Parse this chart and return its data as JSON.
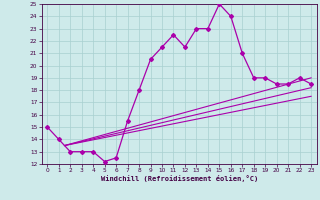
{
  "xlabel": "Windchill (Refroidissement éolien,°C)",
  "xlim": [
    -0.5,
    23.5
  ],
  "ylim": [
    12,
    25
  ],
  "xticks": [
    0,
    1,
    2,
    3,
    4,
    5,
    6,
    7,
    8,
    9,
    10,
    11,
    12,
    13,
    14,
    15,
    16,
    17,
    18,
    19,
    20,
    21,
    22,
    23
  ],
  "yticks": [
    12,
    13,
    14,
    15,
    16,
    17,
    18,
    19,
    20,
    21,
    22,
    23,
    24,
    25
  ],
  "bg_color": "#ceeaea",
  "grid_color": "#a8d0d0",
  "line_color": "#aa00aa",
  "line1_x": [
    0,
    1,
    2,
    3,
    4,
    5,
    6,
    7,
    8,
    9,
    10,
    11,
    12,
    13,
    14,
    15,
    16,
    17,
    18,
    19,
    20,
    21,
    22,
    23
  ],
  "line1_y": [
    15.0,
    14.0,
    13.0,
    13.0,
    13.0,
    12.2,
    12.5,
    15.5,
    18.0,
    20.5,
    21.5,
    22.5,
    21.5,
    23.0,
    23.0,
    25.0,
    24.0,
    21.0,
    19.0,
    19.0,
    18.5,
    18.5,
    19.0,
    18.5
  ],
  "line2_x": [
    1.5,
    23
  ],
  "line2_y": [
    13.5,
    17.5
  ],
  "line3_x": [
    1.5,
    23
  ],
  "line3_y": [
    13.5,
    18.2
  ],
  "line4_x": [
    1.5,
    23
  ],
  "line4_y": [
    13.5,
    19.0
  ]
}
